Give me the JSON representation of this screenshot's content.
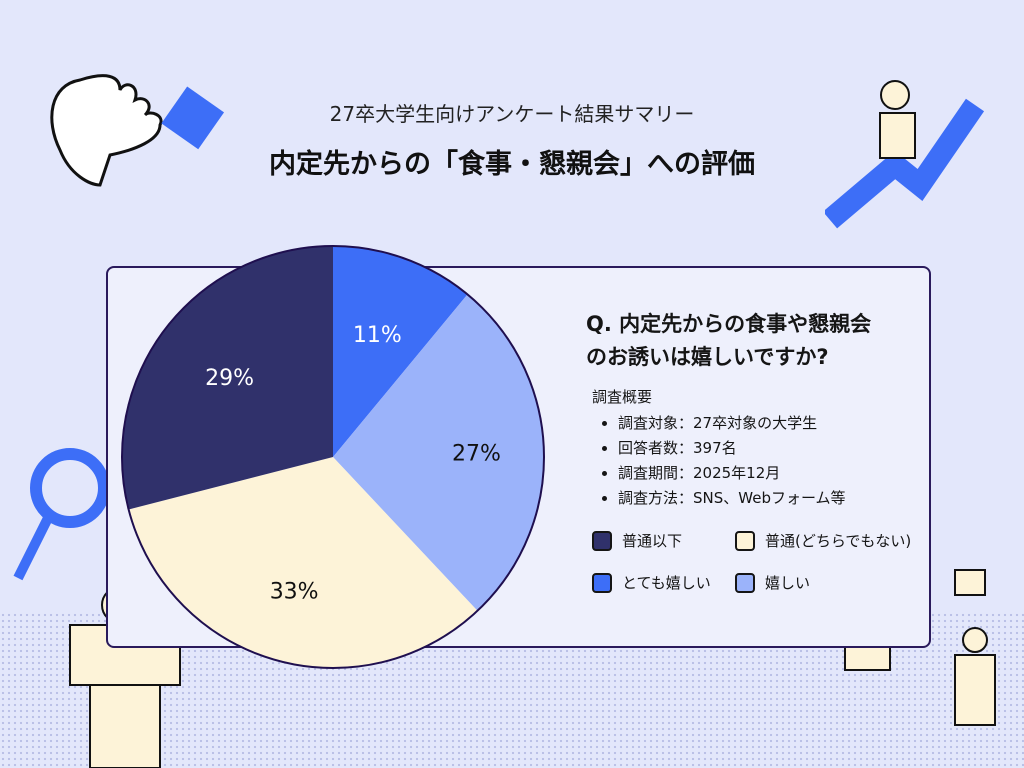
{
  "header": {
    "subtitle": "27卒大学生向けアンケート結果サマリー",
    "title": "内定先からの「食事・懇親会」への評価"
  },
  "question": {
    "line1": "Q. 内定先からの食事や懇親会",
    "line2": "のお誘いは嬉しいですか?"
  },
  "overview": {
    "heading": "調査概要",
    "items": [
      "調査対象：27卒対象の大学生",
      "回答者数：397名",
      "調査期間：2025年12月",
      "調査方法：SNS、Webフォーム等"
    ]
  },
  "chart_data": {
    "type": "pie",
    "start": "top, clockwise",
    "slices": [
      {
        "name": "とても嬉しい",
        "value": 11,
        "label": "11%",
        "color": "#3d6ef7",
        "label_color": "#ffffff"
      },
      {
        "name": "嬉しい",
        "value": 27,
        "label": "27%",
        "color": "#9bb3fa",
        "label_color": "#111111"
      },
      {
        "name": "普通(どちらでもない)",
        "value": 33,
        "label": "33%",
        "color": "#fdf3d8",
        "label_color": "#111111"
      },
      {
        "name": "普通以下",
        "value": 29,
        "label": "29%",
        "color": "#30316b",
        "label_color": "#ffffff"
      }
    ],
    "legend": {
      "placement": "right",
      "order": [
        "普通以下",
        "普通(どちらでもない)",
        "とても嬉しい",
        "嬉しい"
      ]
    }
  }
}
